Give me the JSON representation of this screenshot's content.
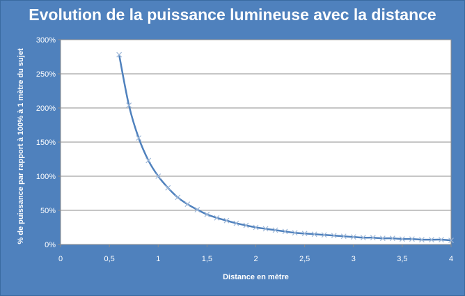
{
  "chart_data": {
    "type": "scatter",
    "title": "Evolution de la puissance lumineuse avec la distance",
    "xlabel": "Distance en mètre",
    "ylabel": "% de puissance par rapport à 100% à 1 mètre du sujet",
    "xlim": [
      0,
      4
    ],
    "ylim": [
      0,
      3
    ],
    "x_ticks": [
      "0",
      "0,5",
      "1",
      "1,5",
      "2",
      "2,5",
      "3",
      "3,5",
      "4"
    ],
    "y_ticks": [
      "0%",
      "50%",
      "100%",
      "150%",
      "200%",
      "250%",
      "300%"
    ],
    "grid": true,
    "legend": "none",
    "series": [
      {
        "marker": "x",
        "line": "smooth",
        "color": "#4f81bd",
        "x": [
          0.6,
          0.7,
          0.8,
          0.9,
          1.0,
          1.1,
          1.2,
          1.3,
          1.4,
          1.5,
          1.6,
          1.7,
          1.8,
          1.9,
          2.0,
          2.1,
          2.2,
          2.3,
          2.4,
          2.5,
          2.6,
          2.7,
          2.8,
          2.9,
          3.0,
          3.1,
          3.2,
          3.3,
          3.4,
          3.5,
          3.6,
          3.7,
          3.8,
          3.9,
          4.0
        ],
        "y": [
          2.78,
          2.04,
          1.56,
          1.23,
          1.0,
          0.83,
          0.69,
          0.59,
          0.51,
          0.44,
          0.39,
          0.35,
          0.31,
          0.28,
          0.25,
          0.23,
          0.21,
          0.19,
          0.17,
          0.16,
          0.15,
          0.14,
          0.13,
          0.12,
          0.11,
          0.1,
          0.1,
          0.09,
          0.09,
          0.08,
          0.08,
          0.07,
          0.07,
          0.07,
          0.06
        ]
      }
    ]
  }
}
